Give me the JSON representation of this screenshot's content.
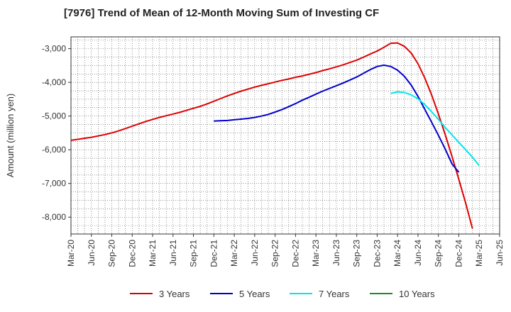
{
  "chart_data": {
    "type": "line",
    "title": "[7976]  Trend of Mean of 12-Month Moving Sum of Investing CF",
    "xlabel": "",
    "ylabel": "Amount (million yen)",
    "ylim": [
      -8500,
      -2650
    ],
    "yticks": [
      -3000,
      -4000,
      -5000,
      -6000,
      -7000,
      -8000
    ],
    "ytick_labels": [
      "-3,000",
      "-4,000",
      "-5,000",
      "-6,000",
      "-7,000",
      "-8,000"
    ],
    "x_start": "Mar-20",
    "x_end": "Jun-25",
    "x_tick_labels": [
      "Mar-20",
      "Jun-20",
      "Sep-20",
      "Dec-20",
      "Mar-21",
      "Jun-21",
      "Sep-21",
      "Dec-21",
      "Mar-22",
      "Jun-22",
      "Sep-22",
      "Dec-22",
      "Mar-23",
      "Jun-23",
      "Sep-23",
      "Dec-23",
      "Mar-24",
      "Jun-24",
      "Sep-24",
      "Dec-24",
      "Mar-25",
      "Jun-25"
    ],
    "grid": true,
    "legend_position": "bottom",
    "series": [
      {
        "name": "3 Years",
        "color": "#dd0000",
        "start_index": 0,
        "values": [
          -5720,
          -5690,
          -5660,
          -5630,
          -5590,
          -5550,
          -5500,
          -5440,
          -5370,
          -5300,
          -5230,
          -5160,
          -5100,
          -5040,
          -4990,
          -4940,
          -4890,
          -4830,
          -4770,
          -4710,
          -4640,
          -4560,
          -4480,
          -4400,
          -4330,
          -4260,
          -4200,
          -4140,
          -4090,
          -4040,
          -3990,
          -3940,
          -3900,
          -3850,
          -3810,
          -3760,
          -3710,
          -3650,
          -3600,
          -3540,
          -3480,
          -3410,
          -3340,
          -3250,
          -3160,
          -3070,
          -2960,
          -2840,
          -2830,
          -2930,
          -3130,
          -3450,
          -3870,
          -4370,
          -4940,
          -5550,
          -6200,
          -6880,
          -7580,
          -8340
        ]
      },
      {
        "name": "5 Years",
        "color": "#0000cc",
        "start_index": 21,
        "values": [
          -5150,
          -5140,
          -5130,
          -5110,
          -5090,
          -5070,
          -5040,
          -5000,
          -4950,
          -4880,
          -4810,
          -4720,
          -4630,
          -4530,
          -4440,
          -4350,
          -4260,
          -4180,
          -4100,
          -4020,
          -3930,
          -3840,
          -3730,
          -3620,
          -3530,
          -3490,
          -3530,
          -3640,
          -3820,
          -4080,
          -4420,
          -4800,
          -5180,
          -5570,
          -5980,
          -6420,
          -6670
        ]
      },
      {
        "name": "7 Years",
        "color": "#00e5ee",
        "start_index": 47,
        "values": [
          -4330,
          -4280,
          -4300,
          -4370,
          -4490,
          -4660,
          -4870,
          -5100,
          -5340,
          -5560,
          -5780,
          -6000,
          -6220,
          -6470
        ]
      },
      {
        "name": "10 Years",
        "color": "#228b22",
        "start_index": 0,
        "values": []
      }
    ]
  }
}
